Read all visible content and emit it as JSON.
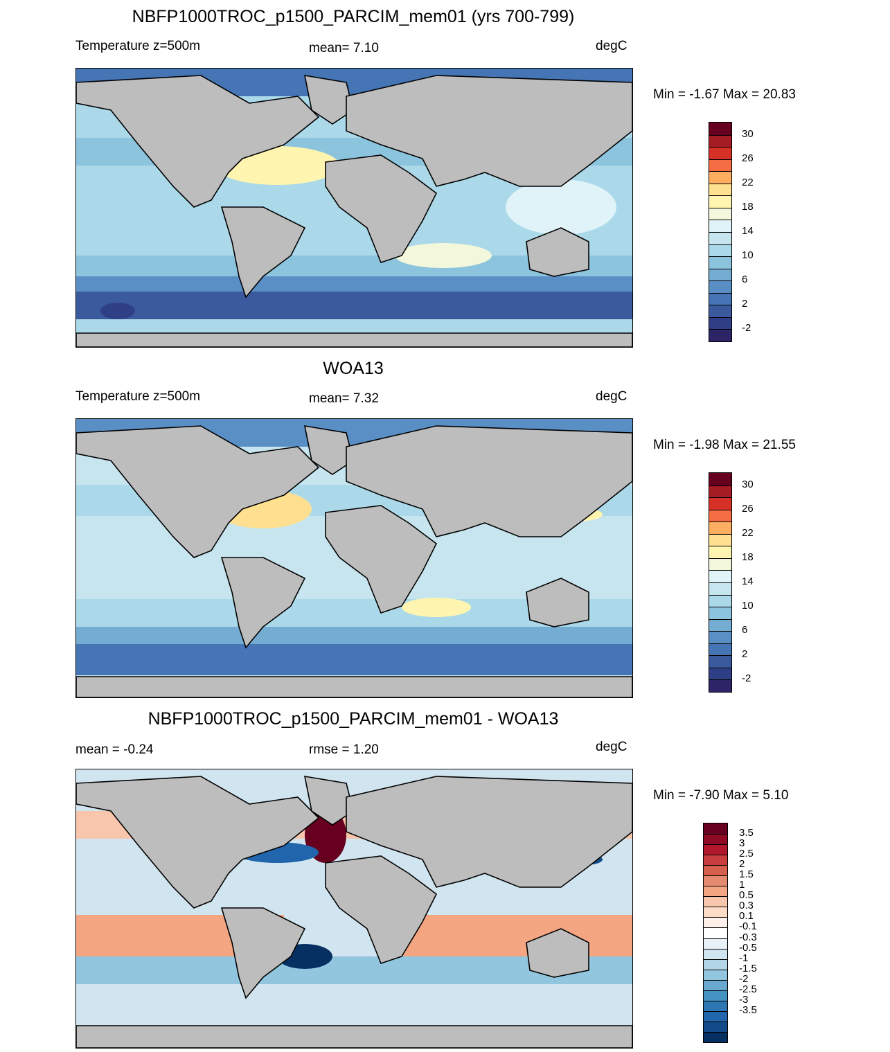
{
  "panels": [
    {
      "title": "NBFP1000TROC_p1500_PARCIM_mem01 (yrs 700-799)",
      "left_label": "Temperature z=500m",
      "center_label": "mean=   7.10",
      "right_label": "degC",
      "minmax": "Min =  -1.67 Max =  20.83",
      "colorbar_labels": [
        "30",
        "26",
        "22",
        "18",
        "14",
        "10",
        "6",
        "2",
        "-2"
      ]
    },
    {
      "title": "WOA13",
      "left_label": "Temperature z=500m",
      "center_label": "mean=   7.32",
      "right_label": "degC",
      "minmax": "Min =  -1.98 Max =  21.55",
      "colorbar_labels": [
        "30",
        "26",
        "22",
        "18",
        "14",
        "10",
        "6",
        "2",
        "-2"
      ]
    },
    {
      "title": "NBFP1000TROC_p1500_PARCIM_mem01 - WOA13",
      "left_label": "mean =  -0.24",
      "center_label": "rmse =   1.20",
      "right_label": "degC",
      "minmax": "Min =  -7.90 Max =   5.10",
      "colorbar_labels": [
        "3.5",
        "3",
        "2.5",
        "2",
        "1.5",
        "1",
        "0.5",
        "0.3",
        "0.1",
        "-0.1",
        "-0.3",
        "-0.5",
        "-1",
        "-1.5",
        "-2",
        "-2.5",
        "-3",
        "-3.5"
      ]
    }
  ],
  "temp_colors": [
    "#67001f",
    "#a41c24",
    "#d73027",
    "#f46d43",
    "#fdae61",
    "#fee090",
    "#fff5b0",
    "#f3f7dc",
    "#e0f3f8",
    "#c6e5ef",
    "#abd9e9",
    "#8cc3dd",
    "#74add1",
    "#5a8fc6",
    "#4575b4",
    "#3b5a9e",
    "#2f3f86",
    "#2c2466"
  ],
  "diff_colors": [
    "#67001f",
    "#8e0a25",
    "#b2182b",
    "#c83d3d",
    "#d6604d",
    "#e48a6f",
    "#f4a582",
    "#f8c6ac",
    "#fddbc7",
    "#fff1ea",
    "#ffffff",
    "#e8f1f7",
    "#d1e5f0",
    "#b3d5e8",
    "#92c5de",
    "#6aa9cf",
    "#4393c3",
    "#2f77b4",
    "#2166ac",
    "#124b88",
    "#053061"
  ],
  "land_color": "#bdbdbd"
}
